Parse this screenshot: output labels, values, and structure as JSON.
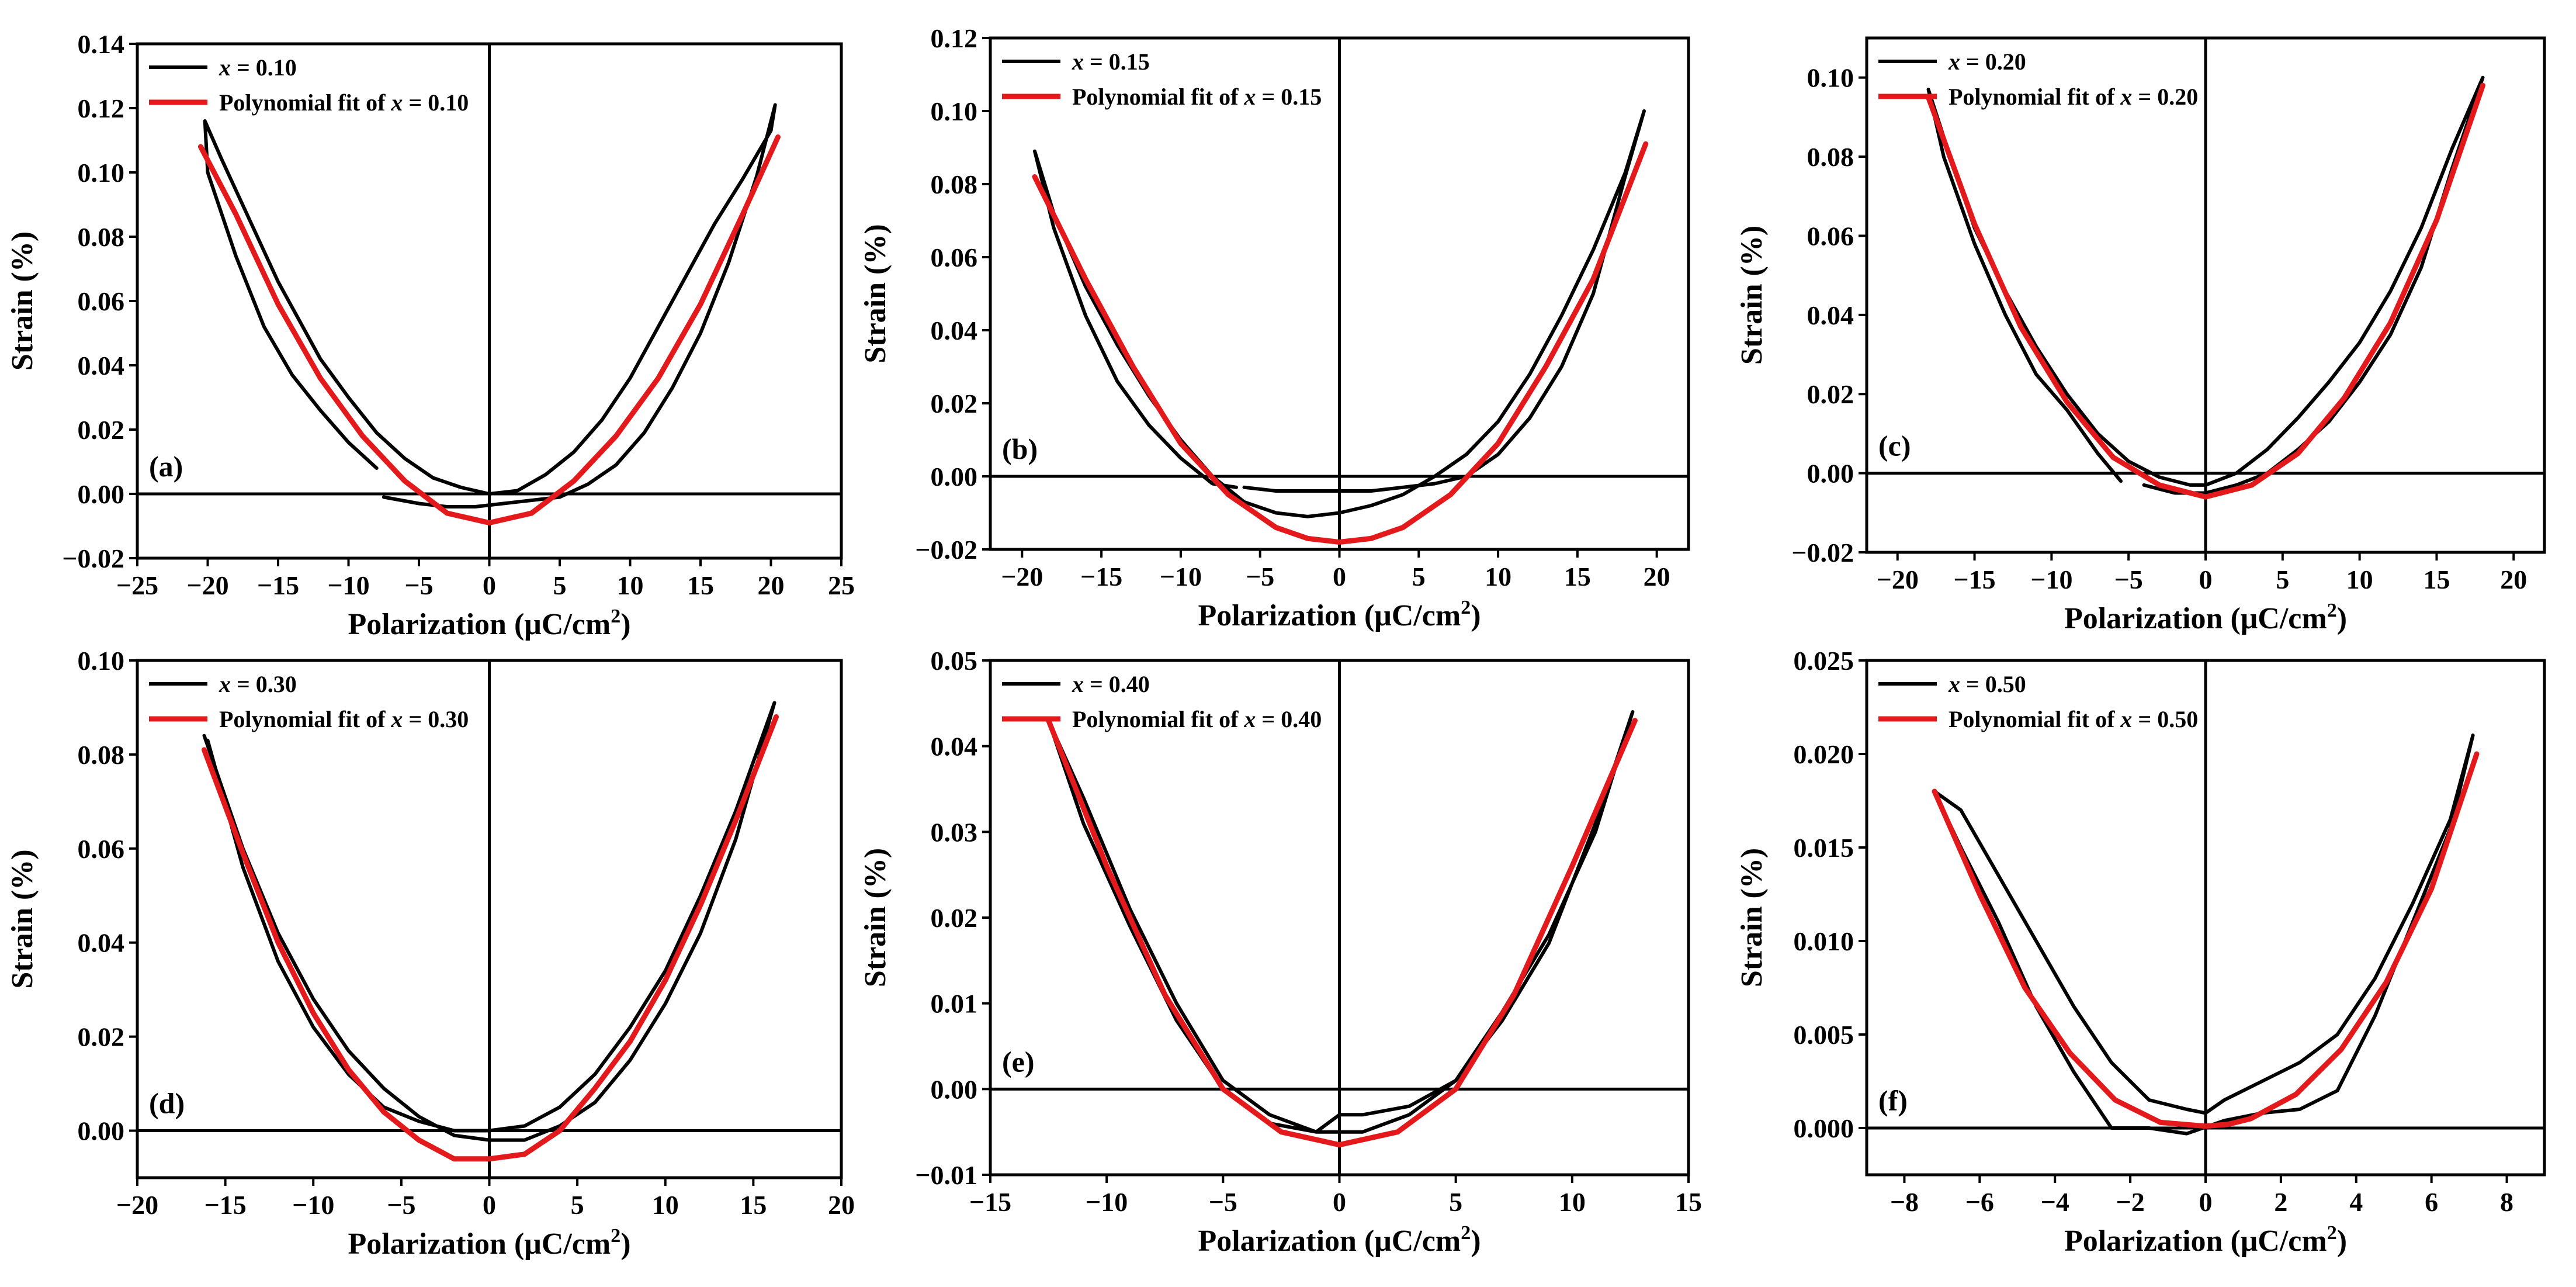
{
  "colors": {
    "data": "#000000",
    "fit": "#e3191c"
  },
  "chart_data": [
    {
      "type": "line",
      "panel_label": "(a)",
      "xlabel": "Polarization",
      "xunit": "(μC/cm",
      "xunit_sup": "2",
      "xunit_close": ")",
      "ylabel": "Strain (%)",
      "xlim": [
        -25,
        25
      ],
      "ylim": [
        -0.02,
        0.14
      ],
      "xticks": [
        -25,
        -20,
        -15,
        -10,
        -5,
        0,
        5,
        10,
        15,
        20,
        25
      ],
      "yticks": [
        -0.02,
        0.0,
        0.02,
        0.04,
        0.06,
        0.08,
        0.1,
        0.12,
        0.14
      ],
      "xtick_labels": [
        "−25",
        "−20",
        "−15",
        "−10",
        "−5",
        "0",
        "5",
        "10",
        "15",
        "20",
        "25"
      ],
      "ytick_labels": [
        "−0.02",
        "0.00",
        "0.02",
        "0.04",
        "0.06",
        "0.08",
        "0.10",
        "0.12",
        "0.14"
      ],
      "legend": {
        "data_prefix": "x",
        "data_suffix": " = 0.10",
        "fit_prefix": "Polynomial fit of ",
        "fit_var": "x",
        "fit_suffix": " = 0.10"
      },
      "series": [
        {
          "name": "x = 0.10",
          "role": "data",
          "x": [
            -8,
            -10,
            -12,
            -14,
            -16,
            -18,
            -20,
            -20.2,
            -19,
            -17,
            -15,
            -12,
            -10,
            -8,
            -6,
            -4,
            -2,
            0,
            2,
            4,
            6,
            8,
            10,
            12,
            14,
            16,
            18,
            20,
            20.3,
            19,
            17,
            15,
            13,
            11,
            9,
            7,
            5,
            3,
            1,
            -1,
            -3,
            -5,
            -7.5
          ],
          "y": [
            0.008,
            0.016,
            0.026,
            0.037,
            0.052,
            0.074,
            0.1,
            0.116,
            0.104,
            0.085,
            0.066,
            0.042,
            0.03,
            0.019,
            0.011,
            0.005,
            0.002,
            0.0,
            0.001,
            0.006,
            0.013,
            0.023,
            0.036,
            0.052,
            0.068,
            0.084,
            0.098,
            0.113,
            0.121,
            0.099,
            0.072,
            0.05,
            0.033,
            0.019,
            0.009,
            0.003,
            -0.001,
            -0.002,
            -0.003,
            -0.004,
            -0.004,
            -0.003,
            -0.001
          ]
        },
        {
          "name": "Polynomial fit of x = 0.10",
          "role": "fit",
          "x": [
            -20.5,
            -18,
            -15,
            -12,
            -9,
            -6,
            -3,
            0,
            3,
            6,
            9,
            12,
            15,
            18,
            20.5
          ],
          "y": [
            0.108,
            0.087,
            0.059,
            0.036,
            0.018,
            0.004,
            -0.006,
            -0.009,
            -0.006,
            0.004,
            0.018,
            0.036,
            0.059,
            0.087,
            0.111
          ]
        }
      ]
    },
    {
      "type": "line",
      "panel_label": "(b)",
      "xlabel": "Polarization",
      "xunit": "(μC/cm",
      "xunit_sup": "2",
      "xunit_close": ")",
      "ylabel": "Strain (%)",
      "xlim": [
        -22,
        22
      ],
      "ylim": [
        -0.02,
        0.12
      ],
      "xticks": [
        -20,
        -15,
        -10,
        -5,
        0,
        5,
        10,
        15,
        20
      ],
      "yticks": [
        -0.02,
        0.0,
        0.02,
        0.04,
        0.06,
        0.08,
        0.1,
        0.12
      ],
      "xtick_labels": [
        "−20",
        "−15",
        "−10",
        "−5",
        "0",
        "5",
        "10",
        "15",
        "20"
      ],
      "ytick_labels": [
        "−0.02",
        "0.00",
        "0.02",
        "0.04",
        "0.06",
        "0.08",
        "0.10",
        "0.12"
      ],
      "legend": {
        "data_prefix": "x",
        "data_suffix": " = 0.15",
        "fit_prefix": "Polynomial fit of ",
        "fit_var": "x",
        "fit_suffix": " = 0.15"
      },
      "series": [
        {
          "name": "x = 0.15",
          "role": "data",
          "x": [
            -6.5,
            -8,
            -10,
            -12,
            -14,
            -16,
            -18,
            -19.2,
            -18,
            -16,
            -14,
            -12,
            -10,
            -8,
            -6,
            -4,
            -2,
            0,
            2,
            4,
            6,
            8,
            10,
            12,
            14,
            16,
            18,
            19.2,
            18,
            16,
            14,
            12,
            10,
            8,
            6,
            4,
            2,
            0,
            -2,
            -4,
            -6
          ],
          "y": [
            -0.003,
            -0.002,
            0.005,
            0.014,
            0.026,
            0.044,
            0.068,
            0.089,
            0.072,
            0.052,
            0.036,
            0.022,
            0.01,
            0.0,
            -0.007,
            -0.01,
            -0.011,
            -0.01,
            -0.008,
            -0.005,
            0.0,
            0.006,
            0.015,
            0.028,
            0.044,
            0.062,
            0.083,
            0.1,
            0.082,
            0.05,
            0.03,
            0.016,
            0.006,
            0.0,
            -0.002,
            -0.003,
            -0.004,
            -0.004,
            -0.004,
            -0.004,
            -0.003
          ]
        },
        {
          "name": "Polynomial fit of x = 0.15",
          "role": "fit",
          "x": [
            -19.2,
            -16,
            -13,
            -10,
            -7,
            -4,
            -2,
            0,
            2,
            4,
            7,
            10,
            13,
            16,
            19.3
          ],
          "y": [
            0.082,
            0.054,
            0.03,
            0.009,
            -0.005,
            -0.014,
            -0.017,
            -0.018,
            -0.017,
            -0.014,
            -0.005,
            0.009,
            0.03,
            0.054,
            0.091
          ]
        }
      ]
    },
    {
      "type": "line",
      "panel_label": "(c)",
      "xlabel": "Polarization",
      "xunit": "(μC/cm",
      "xunit_sup": "2",
      "xunit_close": ")",
      "ylabel": "Strain (%)",
      "xlim": [
        -22,
        22
      ],
      "ylim": [
        -0.02,
        0.11
      ],
      "xticks": [
        -20,
        -15,
        -10,
        -5,
        0,
        5,
        10,
        15,
        20
      ],
      "yticks": [
        -0.02,
        0.0,
        0.02,
        0.04,
        0.06,
        0.08,
        0.1
      ],
      "xtick_labels": [
        "−20",
        "−15",
        "−10",
        "−5",
        "0",
        "5",
        "10",
        "15",
        "20"
      ],
      "ytick_labels": [
        "−0.02",
        "0.00",
        "0.02",
        "0.04",
        "0.06",
        "0.08",
        "0.10"
      ],
      "legend": {
        "data_prefix": "x",
        "data_suffix": " = 0.20",
        "fit_prefix": "Polynomial fit of ",
        "fit_var": "x",
        "fit_suffix": " = 0.20"
      },
      "series": [
        {
          "name": "x = 0.20",
          "role": "data",
          "x": [
            -5.5,
            -7,
            -9,
            -11,
            -13,
            -15,
            -17,
            -18,
            -17,
            -15,
            -13,
            -11,
            -9,
            -7,
            -5,
            -3,
            -1,
            0,
            2,
            4,
            6,
            8,
            10,
            12,
            14,
            16,
            18,
            16,
            14,
            12,
            10,
            8,
            6,
            4,
            2,
            0,
            -2,
            -4
          ],
          "y": [
            -0.002,
            0.005,
            0.016,
            0.025,
            0.04,
            0.058,
            0.08,
            0.097,
            0.085,
            0.062,
            0.046,
            0.032,
            0.02,
            0.01,
            0.003,
            -0.001,
            -0.003,
            -0.003,
            0.0,
            0.006,
            0.014,
            0.023,
            0.033,
            0.046,
            0.062,
            0.082,
            0.1,
            0.077,
            0.052,
            0.035,
            0.023,
            0.013,
            0.006,
            0.0,
            -0.003,
            -0.005,
            -0.005,
            -0.003
          ]
        },
        {
          "name": "Polynomial fit of x = 0.20",
          "role": "fit",
          "x": [
            -18,
            -15,
            -12,
            -9,
            -6,
            -3,
            0,
            3,
            6,
            9,
            12,
            15,
            18
          ],
          "y": [
            0.095,
            0.063,
            0.037,
            0.018,
            0.004,
            -0.003,
            -0.006,
            -0.003,
            0.005,
            0.019,
            0.038,
            0.064,
            0.098
          ]
        }
      ]
    },
    {
      "type": "line",
      "panel_label": "(d)",
      "xlabel": "Polarization",
      "xunit": "(μC/cm",
      "xunit_sup": "2",
      "xunit_close": ")",
      "ylabel": "Strain (%)",
      "xlim": [
        -20,
        20
      ],
      "ylim": [
        -0.01,
        0.1
      ],
      "xticks": [
        -20,
        -15,
        -10,
        -5,
        0,
        5,
        10,
        15,
        20
      ],
      "yticks": [
        0.0,
        0.02,
        0.04,
        0.06,
        0.08,
        0.1
      ],
      "xtick_labels": [
        "−20",
        "−15",
        "−10",
        "−5",
        "0",
        "5",
        "10",
        "15",
        "20"
      ],
      "ytick_labels": [
        "0.00",
        "0.02",
        "0.04",
        "0.06",
        "0.08",
        "0.10"
      ],
      "legend": {
        "data_prefix": "x",
        "data_suffix": " = 0.30",
        "fit_prefix": "Polynomial fit of ",
        "fit_var": "x",
        "fit_suffix": " = 0.30"
      },
      "series": [
        {
          "name": "x = 0.30",
          "role": "data",
          "x": [
            -16,
            -14,
            -12,
            -10,
            -8,
            -6,
            -4,
            -2,
            0,
            2,
            4,
            6,
            8,
            10,
            12,
            14,
            16.2,
            14,
            12,
            10,
            8,
            6,
            4,
            2,
            0,
            -2,
            -4,
            -6,
            -8,
            -10,
            -12,
            -14,
            -16.2
          ],
          "y": [
            0.083,
            0.056,
            0.036,
            0.022,
            0.012,
            0.005,
            0.002,
            0.0,
            0.0,
            0.001,
            0.005,
            0.012,
            0.022,
            0.034,
            0.05,
            0.068,
            0.091,
            0.062,
            0.042,
            0.027,
            0.015,
            0.006,
            0.001,
            -0.002,
            -0.002,
            -0.001,
            0.003,
            0.009,
            0.017,
            0.028,
            0.042,
            0.06,
            0.084
          ]
        },
        {
          "name": "Polynomial fit of x = 0.30",
          "role": "fit",
          "x": [
            -16.2,
            -14,
            -12,
            -10,
            -8,
            -6,
            -4,
            -2,
            0,
            2,
            4,
            6,
            8,
            10,
            12,
            14,
            16.3
          ],
          "y": [
            0.081,
            0.059,
            0.04,
            0.025,
            0.013,
            0.004,
            -0.002,
            -0.006,
            -0.006,
            -0.005,
            0.0,
            0.009,
            0.019,
            0.032,
            0.048,
            0.066,
            0.088
          ]
        }
      ]
    },
    {
      "type": "line",
      "panel_label": "(e)",
      "xlabel": "Polarization",
      "xunit": "(μC/cm",
      "xunit_sup": "2",
      "xunit_close": ")",
      "ylabel": "Strain (%)",
      "xlim": [
        -15,
        15
      ],
      "ylim": [
        -0.01,
        0.05
      ],
      "xticks": [
        -15,
        -10,
        -5,
        0,
        5,
        10,
        15
      ],
      "yticks": [
        -0.01,
        0.0,
        0.01,
        0.02,
        0.03,
        0.04,
        0.05
      ],
      "xtick_labels": [
        "−15",
        "−10",
        "−5",
        "0",
        "5",
        "10",
        "15"
      ],
      "ytick_labels": [
        "−0.01",
        "0.00",
        "0.01",
        "0.02",
        "0.03",
        "0.04",
        "0.05"
      ],
      "legend": {
        "data_prefix": "x",
        "data_suffix": " = 0.40",
        "fit_prefix": "Polynomial fit of ",
        "fit_var": "x",
        "fit_suffix": " = 0.40"
      },
      "series": [
        {
          "name": "x = 0.40",
          "role": "data",
          "x": [
            -12.5,
            -11,
            -9,
            -7,
            -5,
            -3,
            -1,
            0,
            1,
            3,
            5,
            7,
            9,
            11,
            12.6,
            11,
            9,
            7,
            5,
            3,
            1,
            0,
            -1,
            -3,
            -5,
            -7,
            -9,
            -11,
            -12.5
          ],
          "y": [
            0.043,
            0.034,
            0.021,
            0.01,
            0.001,
            -0.003,
            -0.005,
            -0.005,
            -0.005,
            -0.003,
            0.001,
            0.009,
            0.018,
            0.03,
            0.044,
            0.031,
            0.017,
            0.008,
            0.001,
            -0.002,
            -0.003,
            -0.003,
            -0.005,
            -0.004,
            0.0,
            0.008,
            0.019,
            0.031,
            0.043
          ]
        },
        {
          "name": "Polynomial fit of x = 0.40",
          "role": "fit",
          "x": [
            -12.5,
            -10,
            -7.5,
            -5,
            -2.5,
            0,
            2.5,
            5,
            7.5,
            10,
            12.7
          ],
          "y": [
            0.043,
            0.026,
            0.011,
            0.0,
            -0.005,
            -0.0065,
            -0.005,
            0.0,
            0.011,
            0.026,
            0.043
          ]
        }
      ]
    },
    {
      "type": "line",
      "panel_label": "(f)",
      "xlabel": "Polarization",
      "xunit": "(μC/cm",
      "xunit_sup": "2",
      "xunit_close": ")",
      "ylabel": "Strain (%)",
      "xlim": [
        -9,
        9
      ],
      "ylim": [
        -0.0025,
        0.025
      ],
      "xticks": [
        -8,
        -6,
        -4,
        -2,
        0,
        2,
        4,
        6,
        8
      ],
      "yticks": [
        0.0,
        0.005,
        0.01,
        0.015,
        0.02,
        0.025
      ],
      "xtick_labels": [
        "−8",
        "−6",
        "−4",
        "−2",
        "0",
        "2",
        "4",
        "6",
        "8"
      ],
      "ytick_labels": [
        "0.000",
        "0.005",
        "0.010",
        "0.015",
        "0.020",
        "0.025"
      ],
      "legend": {
        "data_prefix": "x",
        "data_suffix": " = 0.50",
        "fit_prefix": "Polynomial fit of ",
        "fit_var": "x",
        "fit_suffix": " = 0.50"
      },
      "series": [
        {
          "name": "x = 0.50",
          "role": "data",
          "x": [
            -7.2,
            -6.5,
            -5.5,
            -4.5,
            -3.5,
            -2.5,
            -1.5,
            -0.5,
            0,
            0.5,
            1.5,
            2.5,
            3.5,
            4.5,
            5.5,
            6.5,
            7.1,
            6.5,
            5.5,
            4.5,
            3.5,
            2.5,
            1.5,
            0.5,
            -0.5,
            -1.5,
            -2,
            -2.5,
            -3.5,
            -4.5,
            -5.5,
            -6.5,
            -7.2
          ],
          "y": [
            0.018,
            0.017,
            0.0135,
            0.01,
            0.0065,
            0.0035,
            0.0015,
            0.001,
            0.0008,
            0.0015,
            0.0025,
            0.0035,
            0.005,
            0.008,
            0.012,
            0.0165,
            0.021,
            0.016,
            0.011,
            0.006,
            0.002,
            0.001,
            0.0008,
            0.0004,
            -0.0003,
            0.0,
            0.0,
            0.0,
            0.003,
            0.0065,
            0.011,
            0.015,
            0.018
          ]
        },
        {
          "name": "Polynomial fit of x = 0.50",
          "role": "fit",
          "x": [
            -7.2,
            -6,
            -4.8,
            -3.6,
            -2.4,
            -1.2,
            0,
            0.6,
            1.2,
            2.4,
            3.6,
            4.8,
            6,
            7.2
          ],
          "y": [
            0.018,
            0.0125,
            0.0075,
            0.004,
            0.0015,
            0.0003,
            0.0001,
            0.0002,
            0.0005,
            0.0018,
            0.0042,
            0.0078,
            0.0128,
            0.02
          ]
        }
      ]
    }
  ]
}
